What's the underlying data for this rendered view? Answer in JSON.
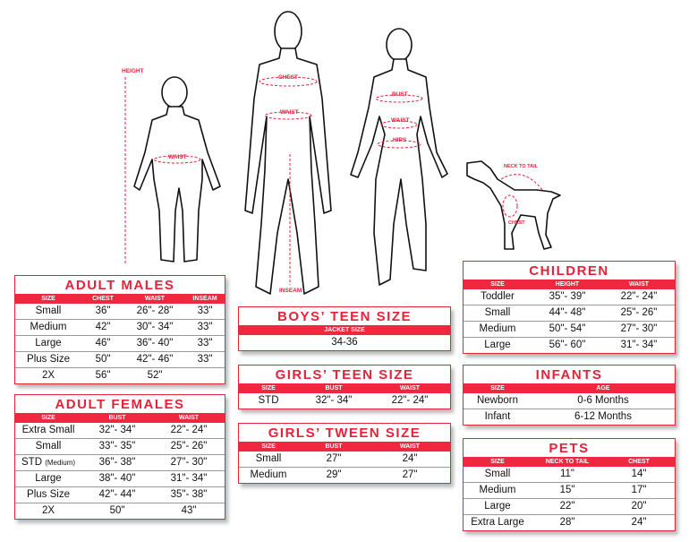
{
  "figure_labels": {
    "child_height": "HEIGHT",
    "child_waist": "WAIST",
    "man_chest": "CHEST",
    "man_waist": "WAIST",
    "man_inseam": "INSEAM",
    "woman_bust": "BUST",
    "woman_waist": "WAIST",
    "woman_hips": "HIPS",
    "dog_neck_to_tail": "NECK TO TAIL",
    "dog_chest": "CHEST"
  },
  "colors": {
    "accent": "#f0283f",
    "title": "#e8213a"
  },
  "tables": {
    "adult_males": {
      "title": "ADULT MALES",
      "headers": [
        "SIZE",
        "CHEST",
        "WAIST",
        "INSEAM"
      ],
      "rows": [
        [
          "Small",
          "36\"",
          "26\"- 28\"",
          "33\""
        ],
        [
          "Medium",
          "42\"",
          "30\"- 34\"",
          "33\""
        ],
        [
          "Large",
          "46\"",
          "36\"- 40\"",
          "33\""
        ],
        [
          "Plus Size",
          "50\"",
          "42\"- 46\"",
          "33\""
        ],
        [
          "2X",
          "56\"",
          "52\"",
          ""
        ]
      ]
    },
    "adult_females": {
      "title": "ADULT FEMALES",
      "headers": [
        "SIZE",
        "BUST",
        "WAIST"
      ],
      "rows": [
        [
          "Extra Small",
          "32\"- 34\"",
          "22\"- 24\""
        ],
        [
          "Small",
          "33\"- 35\"",
          "25\"- 26\""
        ],
        [
          "STD (Medium)",
          "36\"- 38\"",
          "27\"- 30\""
        ],
        [
          "Large",
          "38\"- 40\"",
          "31\"- 34\""
        ],
        [
          "Plus Size",
          "42\"- 44\"",
          "35\"- 38\""
        ],
        [
          "2X",
          "50\"",
          "43\""
        ]
      ]
    },
    "boys_teen": {
      "title": "BOYS’ TEEN SIZE",
      "headers": [
        "JACKET SIZE"
      ],
      "rows": [
        [
          "34-36"
        ]
      ]
    },
    "girls_teen": {
      "title": "GIRLS’ TEEN SIZE",
      "headers": [
        "SIZE",
        "BUST",
        "WAIST"
      ],
      "rows": [
        [
          "STD",
          "32\"- 34\"",
          "22\"- 24\""
        ]
      ]
    },
    "girls_tween": {
      "title": "GIRLS’ TWEEN SIZE",
      "headers": [
        "SIZE",
        "BUST",
        "WAIST"
      ],
      "rows": [
        [
          "Small",
          "27\"",
          "24\""
        ],
        [
          "Medium",
          "29\"",
          "27\""
        ]
      ]
    },
    "children": {
      "title": "CHILDREN",
      "headers": [
        "SIZE",
        "HEIGHT",
        "WAIST"
      ],
      "rows": [
        [
          "Toddler",
          "35\"- 39\"",
          "22\"- 24\""
        ],
        [
          "Small",
          "44\"- 48\"",
          "25\"- 26\""
        ],
        [
          "Medium",
          "50\"- 54\"",
          "27\"- 30\""
        ],
        [
          "Large",
          "56\"- 60\"",
          "31\"- 34\""
        ]
      ]
    },
    "infants": {
      "title": "INFANTS",
      "headers": [
        "SIZE",
        "AGE"
      ],
      "rows": [
        [
          "Newborn",
          "0-6 Months"
        ],
        [
          "Infant",
          "6-12 Months"
        ]
      ]
    },
    "pets": {
      "title": "PETS",
      "headers": [
        "SIZE",
        "NECK TO TAIL",
        "CHEST"
      ],
      "rows": [
        [
          "Small",
          "11\"",
          "14\""
        ],
        [
          "Medium",
          "15\"",
          "17\""
        ],
        [
          "Large",
          "22\"",
          "20\""
        ],
        [
          "Extra Large",
          "28\"",
          "24\""
        ]
      ]
    }
  }
}
